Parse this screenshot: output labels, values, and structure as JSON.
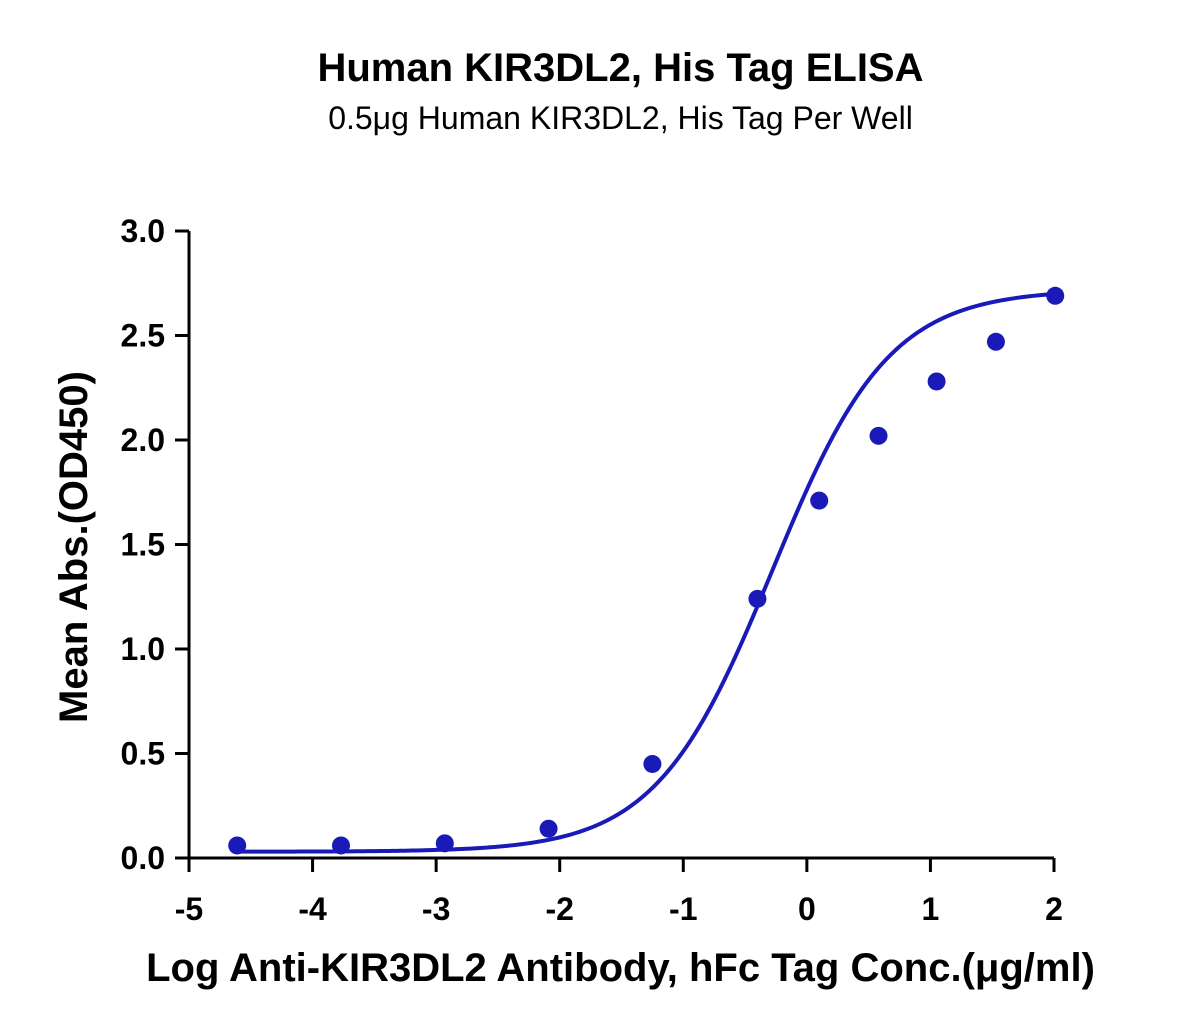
{
  "chart_data": {
    "type": "scatter",
    "title": "Human KIR3DL2, His Tag ELISA",
    "subtitle": "0.5μg Human KIR3DL2, His Tag Per Well",
    "xlabel": "Log Anti-KIR3DL2 Antibody, hFc Tag Conc.(μg/ml)",
    "ylabel": "Mean Abs.(OD450)",
    "xlim": [
      -5,
      2
    ],
    "ylim": [
      0,
      3.0
    ],
    "x_ticks": [
      "-5",
      "-4",
      "-3",
      "-2",
      "-1",
      "0",
      "1",
      "2"
    ],
    "y_ticks": [
      "0.0",
      "0.5",
      "1.0",
      "1.5",
      "2.0",
      "2.5",
      "3.0"
    ],
    "grid": false,
    "color": "#1a1ab8",
    "series": [
      {
        "points": [
          {
            "x": -4.61,
            "y": 0.06
          },
          {
            "x": -3.77,
            "y": 0.06
          },
          {
            "x": -2.93,
            "y": 0.07
          },
          {
            "x": -2.09,
            "y": 0.14
          },
          {
            "x": -1.25,
            "y": 0.45
          },
          {
            "x": -0.4,
            "y": 1.24
          },
          {
            "x": 0.1,
            "y": 1.71
          },
          {
            "x": 0.58,
            "y": 2.02
          },
          {
            "x": 1.05,
            "y": 2.28
          },
          {
            "x": 1.53,
            "y": 2.47
          },
          {
            "x": 2.01,
            "y": 2.69
          }
        ],
        "fit": {
          "model": "4PL",
          "bottom": 0.03,
          "top": 2.72,
          "log_ec50": -0.28,
          "hill_slope": 0.92,
          "x_range": [
            -4.61,
            2.0
          ]
        }
      }
    ]
  }
}
